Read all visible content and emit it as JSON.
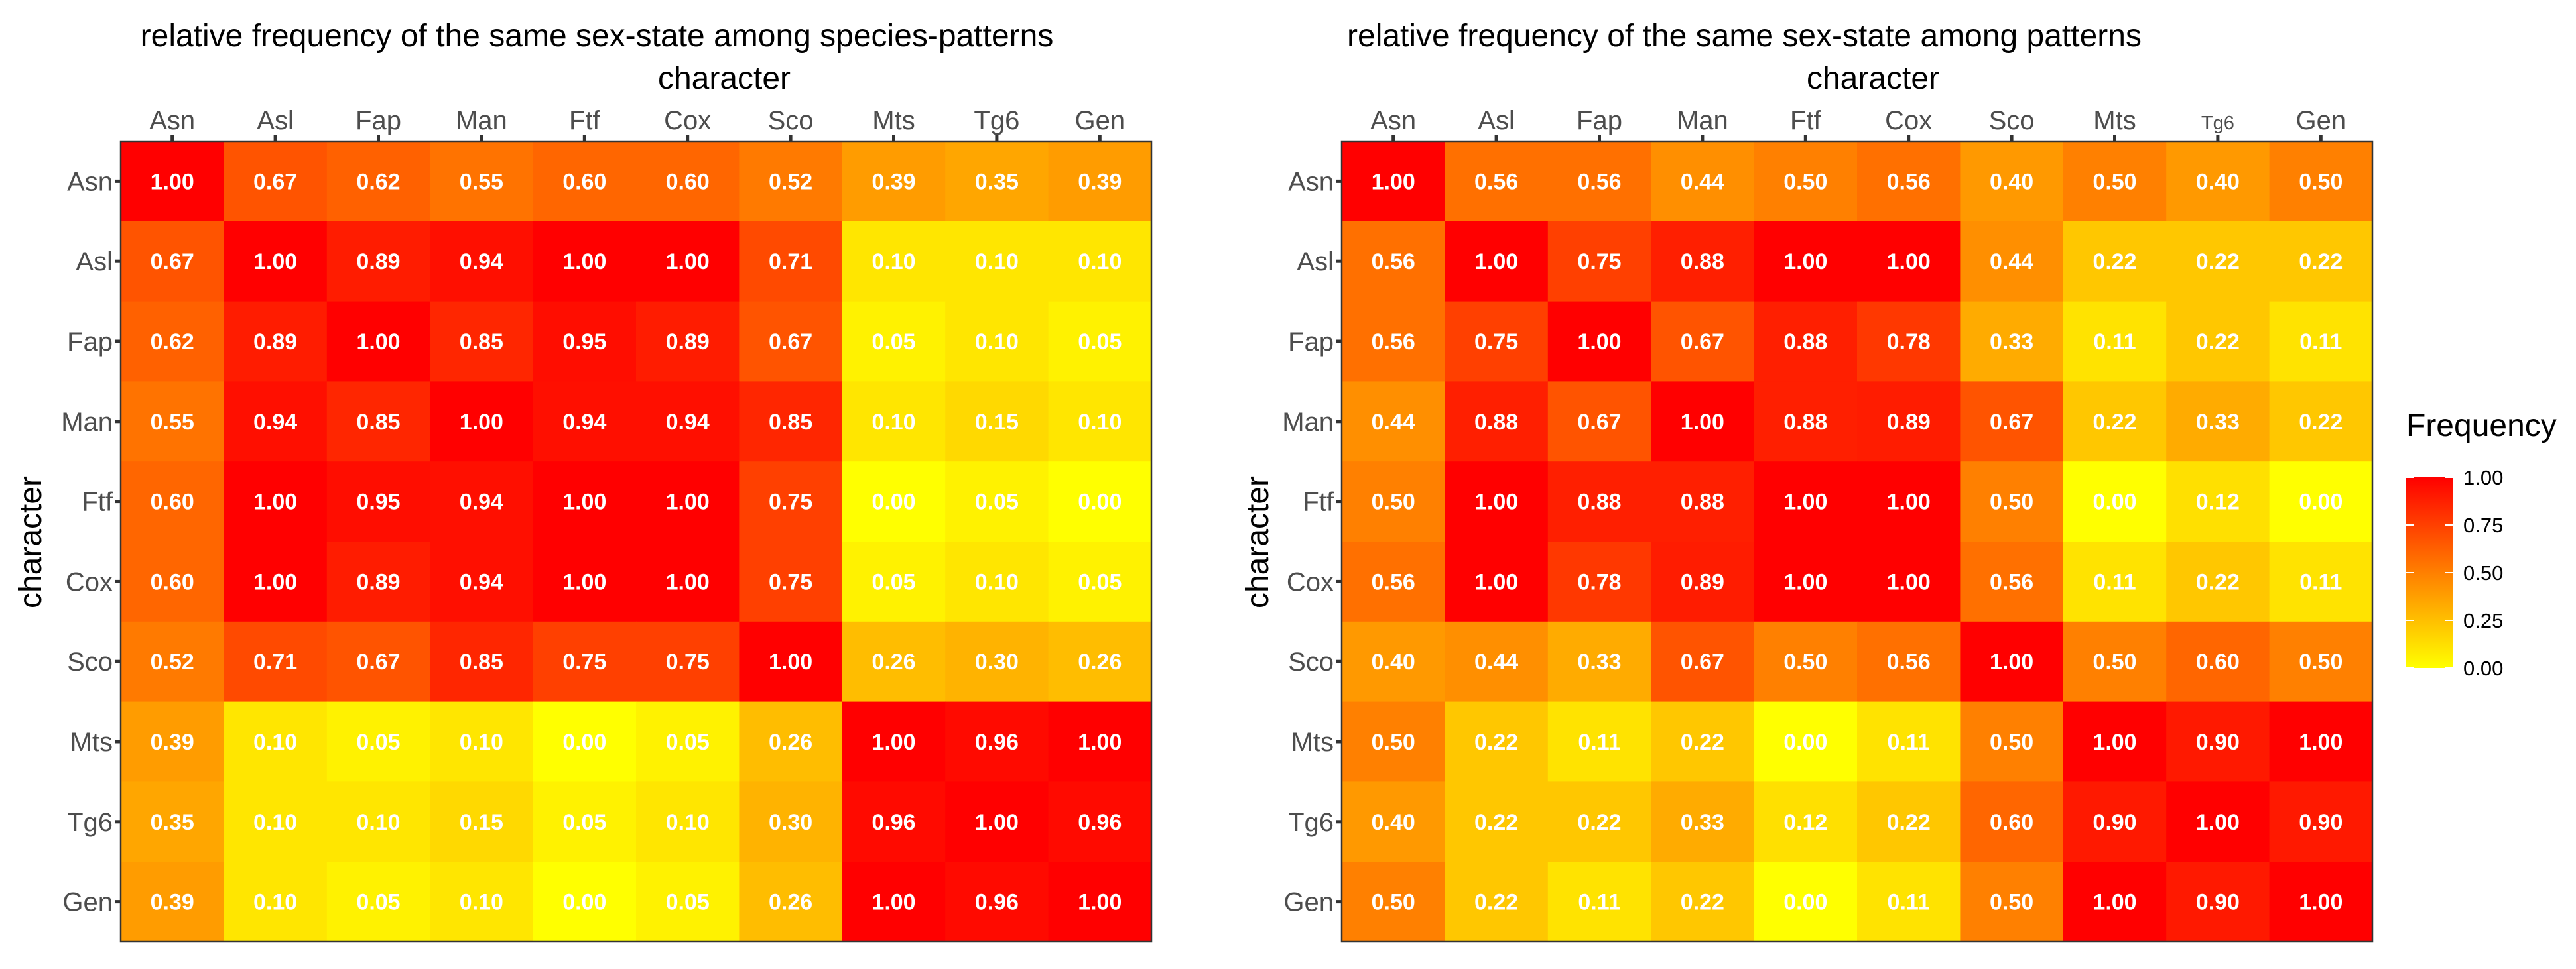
{
  "chart_data": [
    {
      "type": "heatmap",
      "title": "relative frequency of the same sex-state among species-patterns",
      "xlabel": "character",
      "ylabel": "character",
      "x_categories": [
        "Asn",
        "Asl",
        "Fap",
        "Man",
        "Ftf",
        "Cox",
        "Sco",
        "Mts",
        "Tg6",
        "Gen"
      ],
      "y_categories": [
        "Asn",
        "Asl",
        "Fap",
        "Man",
        "Ftf",
        "Cox",
        "Sco",
        "Mts",
        "Tg6",
        "Gen"
      ],
      "values": [
        [
          1.0,
          0.67,
          0.62,
          0.55,
          0.6,
          0.6,
          0.52,
          0.39,
          0.35,
          0.39
        ],
        [
          0.67,
          1.0,
          0.89,
          0.94,
          1.0,
          1.0,
          0.71,
          0.1,
          0.1,
          0.1
        ],
        [
          0.62,
          0.89,
          1.0,
          0.85,
          0.95,
          0.89,
          0.67,
          0.05,
          0.1,
          0.05
        ],
        [
          0.55,
          0.94,
          0.85,
          1.0,
          0.94,
          0.94,
          0.85,
          0.1,
          0.15,
          0.1
        ],
        [
          0.6,
          1.0,
          0.95,
          0.94,
          1.0,
          1.0,
          0.75,
          0.0,
          0.05,
          0.0
        ],
        [
          0.6,
          1.0,
          0.89,
          0.94,
          1.0,
          1.0,
          0.75,
          0.05,
          0.1,
          0.05
        ],
        [
          0.52,
          0.71,
          0.67,
          0.85,
          0.75,
          0.75,
          1.0,
          0.26,
          0.3,
          0.26
        ],
        [
          0.39,
          0.1,
          0.05,
          0.1,
          0.0,
          0.05,
          0.26,
          1.0,
          0.96,
          1.0
        ],
        [
          0.35,
          0.1,
          0.1,
          0.15,
          0.05,
          0.1,
          0.3,
          0.96,
          1.0,
          0.96
        ],
        [
          0.39,
          0.1,
          0.05,
          0.1,
          0.0,
          0.05,
          0.26,
          1.0,
          0.96,
          1.0
        ]
      ],
      "value_range": [
        0,
        1
      ]
    },
    {
      "type": "heatmap",
      "title": "relative frequency of the same sex-state among patterns",
      "xlabel": "character",
      "ylabel": "character",
      "x_categories": [
        "Asn",
        "Asl",
        "Fap",
        "Man",
        "Ftf",
        "Cox",
        "Sco",
        "Mts",
        "Tg6",
        "Gen"
      ],
      "y_categories": [
        "Asn",
        "Asl",
        "Fap",
        "Man",
        "Ftf",
        "Cox",
        "Sco",
        "Mts",
        "Tg6",
        "Gen"
      ],
      "values": [
        [
          1.0,
          0.56,
          0.56,
          0.44,
          0.5,
          0.56,
          0.4,
          0.5,
          0.4,
          0.5
        ],
        [
          0.56,
          1.0,
          0.75,
          0.88,
          1.0,
          1.0,
          0.44,
          0.22,
          0.22,
          0.22
        ],
        [
          0.56,
          0.75,
          1.0,
          0.67,
          0.88,
          0.78,
          0.33,
          0.11,
          0.22,
          0.11
        ],
        [
          0.44,
          0.88,
          0.67,
          1.0,
          0.88,
          0.89,
          0.67,
          0.22,
          0.33,
          0.22
        ],
        [
          0.5,
          1.0,
          0.88,
          0.88,
          1.0,
          1.0,
          0.5,
          0.0,
          0.12,
          0.0
        ],
        [
          0.56,
          1.0,
          0.78,
          0.89,
          1.0,
          1.0,
          0.56,
          0.11,
          0.22,
          0.11
        ],
        [
          0.4,
          0.44,
          0.33,
          0.67,
          0.5,
          0.56,
          1.0,
          0.5,
          0.6,
          0.5
        ],
        [
          0.5,
          0.22,
          0.11,
          0.22,
          0.0,
          0.11,
          0.5,
          1.0,
          0.9,
          1.0
        ],
        [
          0.4,
          0.22,
          0.22,
          0.33,
          0.12,
          0.22,
          0.6,
          0.9,
          1.0,
          0.9
        ],
        [
          0.5,
          0.22,
          0.11,
          0.22,
          0.0,
          0.11,
          0.5,
          1.0,
          0.9,
          1.0
        ]
      ],
      "value_range": [
        0,
        1
      ]
    }
  ],
  "legend": {
    "title": "Frequency",
    "ticks": [
      "1.00",
      "0.75",
      "0.50",
      "0.25",
      "0.00"
    ],
    "tick_values": [
      1.0,
      0.75,
      0.5,
      0.25,
      0.0
    ]
  },
  "colors": {
    "low": "#ffff00",
    "high": "#ff0000",
    "cell_text": "#ffffff",
    "tick_text": "#4d4d4d",
    "panel_border": "#333333"
  }
}
